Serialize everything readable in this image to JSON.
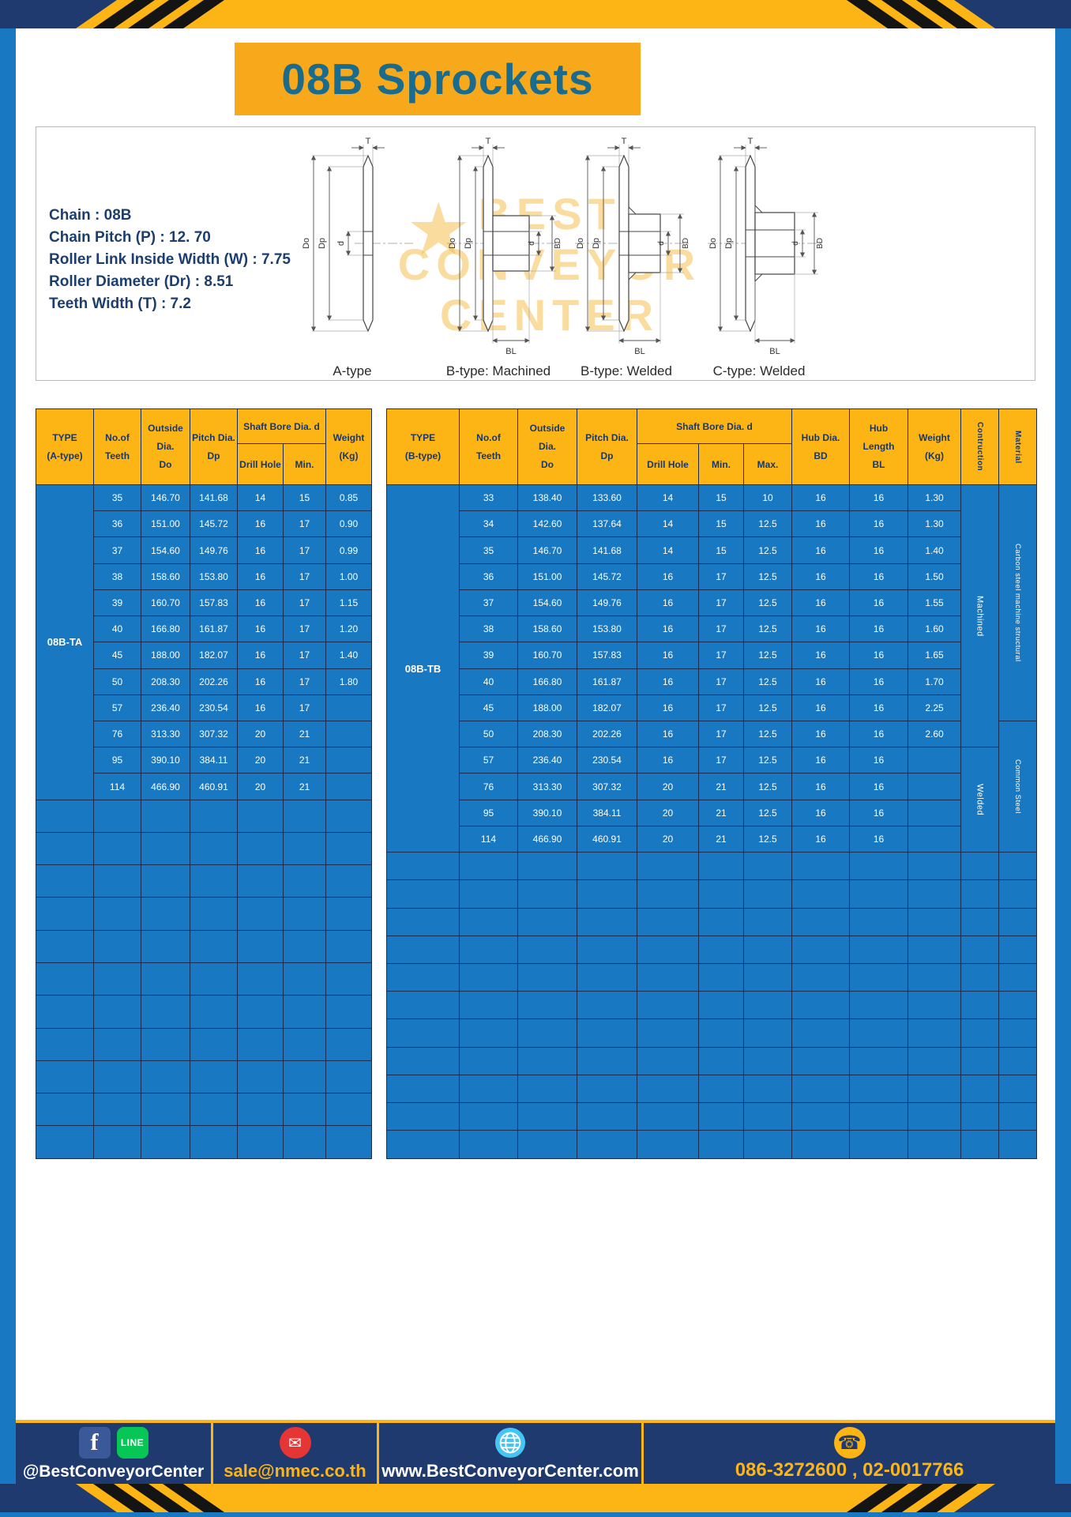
{
  "title": "08B Sprockets",
  "specs": {
    "lines": [
      "Chain  :  08B",
      "Chain Pitch (P)  :  12. 70",
      "Roller Link Inside Width (W)  :  7.75",
      "Roller Diameter (Dr)  :  8.51",
      "Teeth Width (T)  :  7.2"
    ]
  },
  "watermark": {
    "star": "★",
    "l1": "BEST",
    "l2": "CONVEYOR",
    "l3": "CENTER"
  },
  "figures": {
    "a": "A-type",
    "b_machined": "B-type: Machined",
    "b_welded": "B-type: Welded",
    "c_welded": "C-type: Welded"
  },
  "dims": {
    "t": "T",
    "do": "Do",
    "dp": "Dp",
    "d": "d",
    "bd": "BD",
    "bl": "BL"
  },
  "table_a": {
    "headers": {
      "type": [
        "TYPE",
        "(A-type)"
      ],
      "teeth": [
        "No.of",
        "Teeth"
      ],
      "outside": [
        "Outside",
        "Dia.",
        "Do"
      ],
      "pitch": [
        "Pitch Dia.",
        "Dp"
      ],
      "shaft_bore": "Shaft Bore Dia. d",
      "drill": "Drill Hole",
      "min": "Min.",
      "weight": [
        "Weight",
        "(Kg)"
      ]
    },
    "type_label": "08B-TA",
    "rows": [
      [
        "35",
        "146.70",
        "141.68",
        "14",
        "15",
        "0.85"
      ],
      [
        "36",
        "151.00",
        "145.72",
        "16",
        "17",
        "0.90"
      ],
      [
        "37",
        "154.60",
        "149.76",
        "16",
        "17",
        "0.99"
      ],
      [
        "38",
        "158.60",
        "153.80",
        "16",
        "17",
        "1.00"
      ],
      [
        "39",
        "160.70",
        "157.83",
        "16",
        "17",
        "1.15"
      ],
      [
        "40",
        "166.80",
        "161.87",
        "16",
        "17",
        "1.20"
      ],
      [
        "45",
        "188.00",
        "182.07",
        "16",
        "17",
        "1.40"
      ],
      [
        "50",
        "208.30",
        "202.26",
        "16",
        "17",
        "1.80"
      ],
      [
        "57",
        "236.40",
        "230.54",
        "16",
        "17",
        ""
      ],
      [
        "76",
        "313.30",
        "307.32",
        "20",
        "21",
        ""
      ],
      [
        "95",
        "390.10",
        "384.11",
        "20",
        "21",
        ""
      ],
      [
        "114",
        "466.90",
        "460.91",
        "20",
        "21",
        ""
      ]
    ],
    "empty_rows": 11,
    "empty_cols": 7
  },
  "table_b": {
    "headers": {
      "type": [
        "TYPE",
        "(B-type)"
      ],
      "teeth": [
        "No.of",
        "Teeth"
      ],
      "outside": [
        "Outside",
        "Dia.",
        "Do"
      ],
      "pitch": [
        "Pitch Dia.",
        "Dp"
      ],
      "shaft_bore": "Shaft Bore Dia. d",
      "drill": "Drill Hole",
      "min": "Min.",
      "max": "Max.",
      "hub_dia": [
        "Hub Dia.",
        "BD"
      ],
      "hub_len": [
        "Hub",
        "Length",
        "BL"
      ],
      "weight": [
        "Weight",
        "(Kg)"
      ],
      "construction": "Contruction",
      "material": "Material"
    },
    "type_label": "08B-TB",
    "rows": [
      [
        "33",
        "138.40",
        "133.60",
        "14",
        "15",
        "10",
        "16",
        "16",
        "1.30"
      ],
      [
        "34",
        "142.60",
        "137.64",
        "14",
        "15",
        "12.5",
        "16",
        "16",
        "1.30"
      ],
      [
        "35",
        "146.70",
        "141.68",
        "14",
        "15",
        "12.5",
        "16",
        "16",
        "1.40"
      ],
      [
        "36",
        "151.00",
        "145.72",
        "16",
        "17",
        "12.5",
        "16",
        "16",
        "1.50"
      ],
      [
        "37",
        "154.60",
        "149.76",
        "16",
        "17",
        "12.5",
        "16",
        "16",
        "1.55"
      ],
      [
        "38",
        "158.60",
        "153.80",
        "16",
        "17",
        "12.5",
        "16",
        "16",
        "1.60"
      ],
      [
        "39",
        "160.70",
        "157.83",
        "16",
        "17",
        "12.5",
        "16",
        "16",
        "1.65"
      ],
      [
        "40",
        "166.80",
        "161.87",
        "16",
        "17",
        "12.5",
        "16",
        "16",
        "1.70"
      ],
      [
        "45",
        "188.00",
        "182.07",
        "16",
        "17",
        "12.5",
        "16",
        "16",
        "2.25"
      ],
      [
        "50",
        "208.30",
        "202.26",
        "16",
        "17",
        "12.5",
        "16",
        "16",
        "2.60"
      ],
      [
        "57",
        "236.40",
        "230.54",
        "16",
        "17",
        "12.5",
        "16",
        "16",
        ""
      ],
      [
        "76",
        "313.30",
        "307.32",
        "20",
        "21",
        "12.5",
        "16",
        "16",
        ""
      ],
      [
        "95",
        "390.10",
        "384.11",
        "20",
        "21",
        "12.5",
        "16",
        "16",
        ""
      ],
      [
        "114",
        "466.90",
        "460.91",
        "20",
        "21",
        "12.5",
        "16",
        "16",
        ""
      ]
    ],
    "construction_groups": [
      {
        "label": "Machined",
        "span": 10
      },
      {
        "label": "Welded",
        "span": 4
      }
    ],
    "material_groups": [
      {
        "label": "Carbon steel  machine  structural",
        "span": 9
      },
      {
        "label": "Common  Steel",
        "span": 5
      }
    ],
    "empty_rows": 11,
    "empty_cols": 12
  },
  "footer": {
    "social_handle": "@BestConveyorCenter",
    "email": "sale@nmec.co.th",
    "website": "www.BestConveyorCenter.com",
    "phones": "086-3272600 , 02-0017766",
    "facebook_letter": "f",
    "line_label": "LINE",
    "email_glyph": "✉",
    "phone_glyph": "☎"
  },
  "colors": {
    "page_blue": "#1878c2",
    "table_header_yellow": "#fdb515",
    "banner_yellow": "#f7a81b",
    "footer_navy": "#1e3a6e",
    "title_text": "#1a6c8e",
    "facebook_blue": "#3b5998",
    "line_green": "#06c755",
    "mail_red": "#e53535",
    "globe_blue": "#45c5f5"
  }
}
